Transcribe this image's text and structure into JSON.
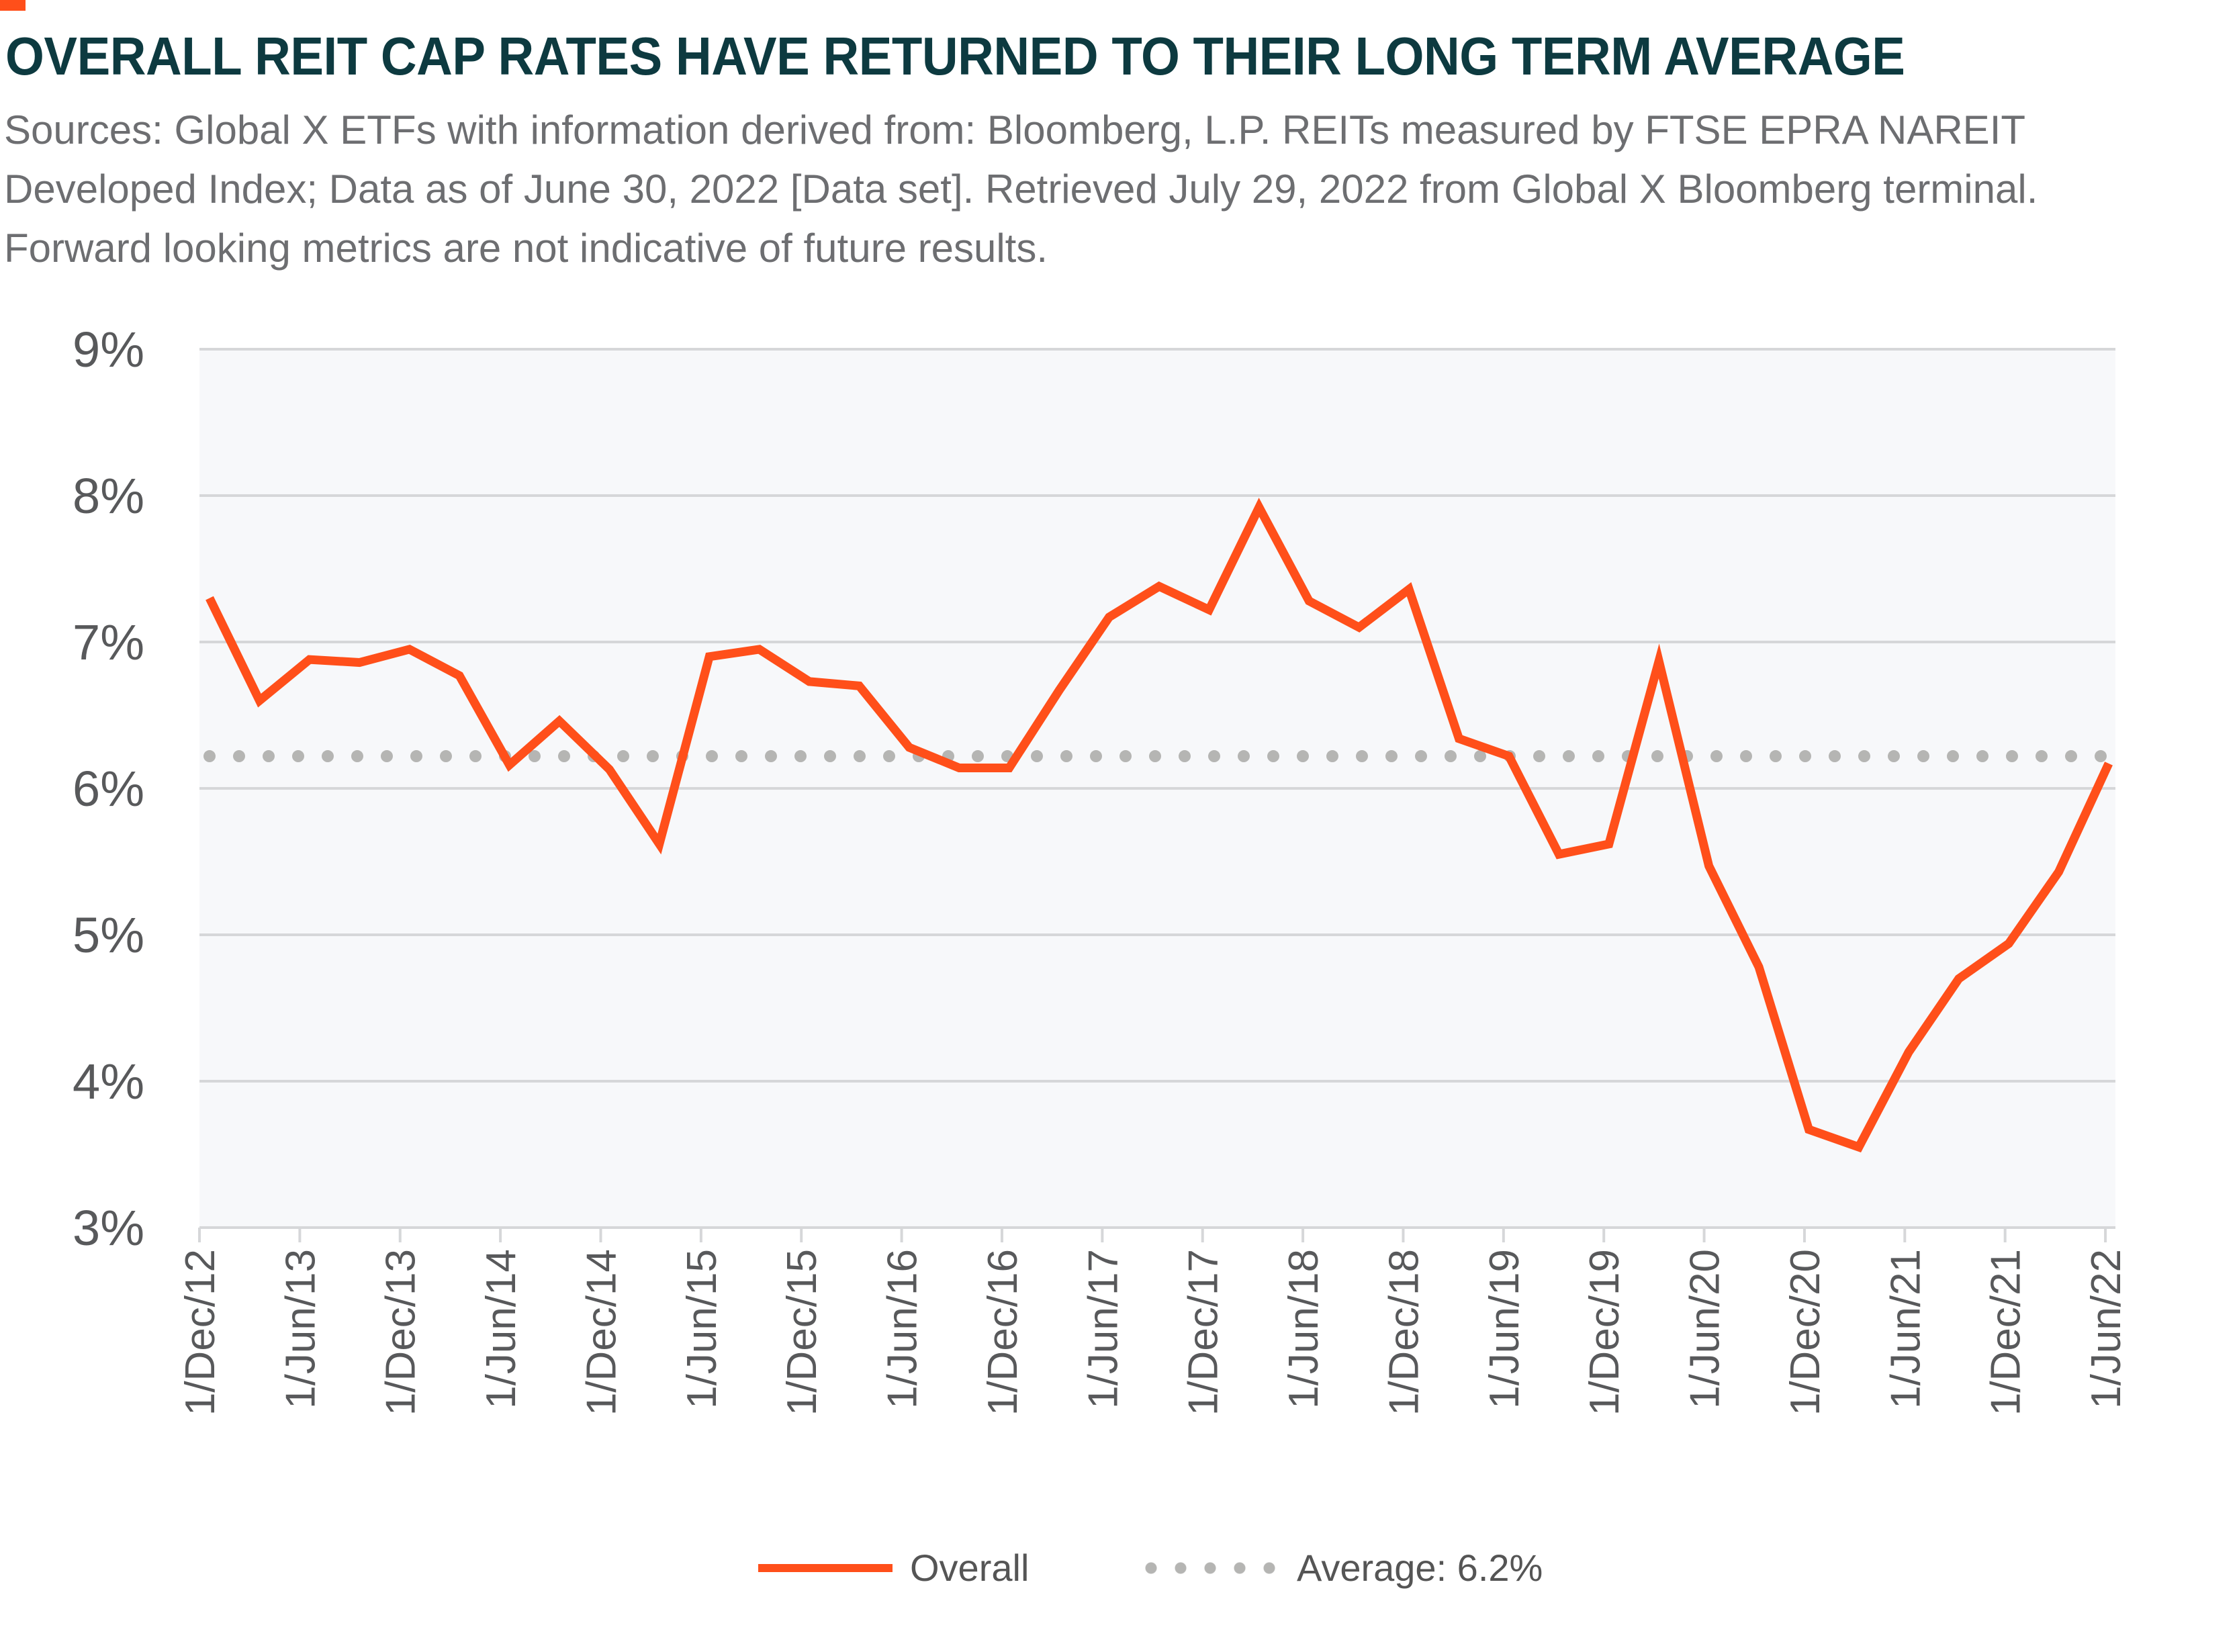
{
  "title": "OVERALL REIT CAP RATES HAVE RETURNED TO THEIR LONG TERM AVERAGE",
  "subtitle_lines": [
    "Sources: Global X ETFs with information derived from: Bloomberg, L.P. REITs measured by FTSE EPRA NAREIT",
    "Developed Index; Data as of June 30, 2022 [Data set]. Retrieved July 29, 2022 from Global X Bloomberg terminal.",
    "Forward looking metrics are not indicative of future results."
  ],
  "colors": {
    "overall": "#ff4f1a",
    "average": "#b5b5b3",
    "plot_bg": "#f7f8fa",
    "title": "#0d3a40"
  },
  "chart_data": {
    "type": "line",
    "ylim": [
      3,
      9
    ],
    "yticks": [
      "3%",
      "4%",
      "5%",
      "6%",
      "7%",
      "8%",
      "9%"
    ],
    "xticks": [
      "1/Dec/12",
      "1/Jun/13",
      "1/Dec/13",
      "1/Jun/14",
      "1/Dec/14",
      "1/Jun/15",
      "1/Dec/15",
      "1/Jun/16",
      "1/Dec/16",
      "1/Jun/17",
      "1/Dec/17",
      "1/Jun/18",
      "1/Dec/18",
      "1/Jun/19",
      "1/Dec/19",
      "1/Jun/20",
      "1/Dec/20",
      "1/Jun/21",
      "1/Dec/21",
      "1/Jun/22"
    ],
    "grid": true,
    "legend_placement": "bottom",
    "series": [
      {
        "name": "Overall",
        "style": "solid",
        "values": [
          7.3,
          6.6,
          6.88,
          6.86,
          6.95,
          6.77,
          6.16,
          6.46,
          6.13,
          5.62,
          6.9,
          6.95,
          6.73,
          6.7,
          6.28,
          6.14,
          6.14,
          6.67,
          7.17,
          7.38,
          7.22,
          7.92,
          7.28,
          7.1,
          7.36,
          6.34,
          6.22,
          5.55,
          5.62,
          6.87,
          5.47,
          4.78,
          3.67,
          3.55,
          4.2,
          4.7,
          4.94,
          5.43,
          6.17
        ]
      },
      {
        "name": "Average: 6.2%",
        "style": "dotted",
        "value": 6.22
      }
    ]
  }
}
